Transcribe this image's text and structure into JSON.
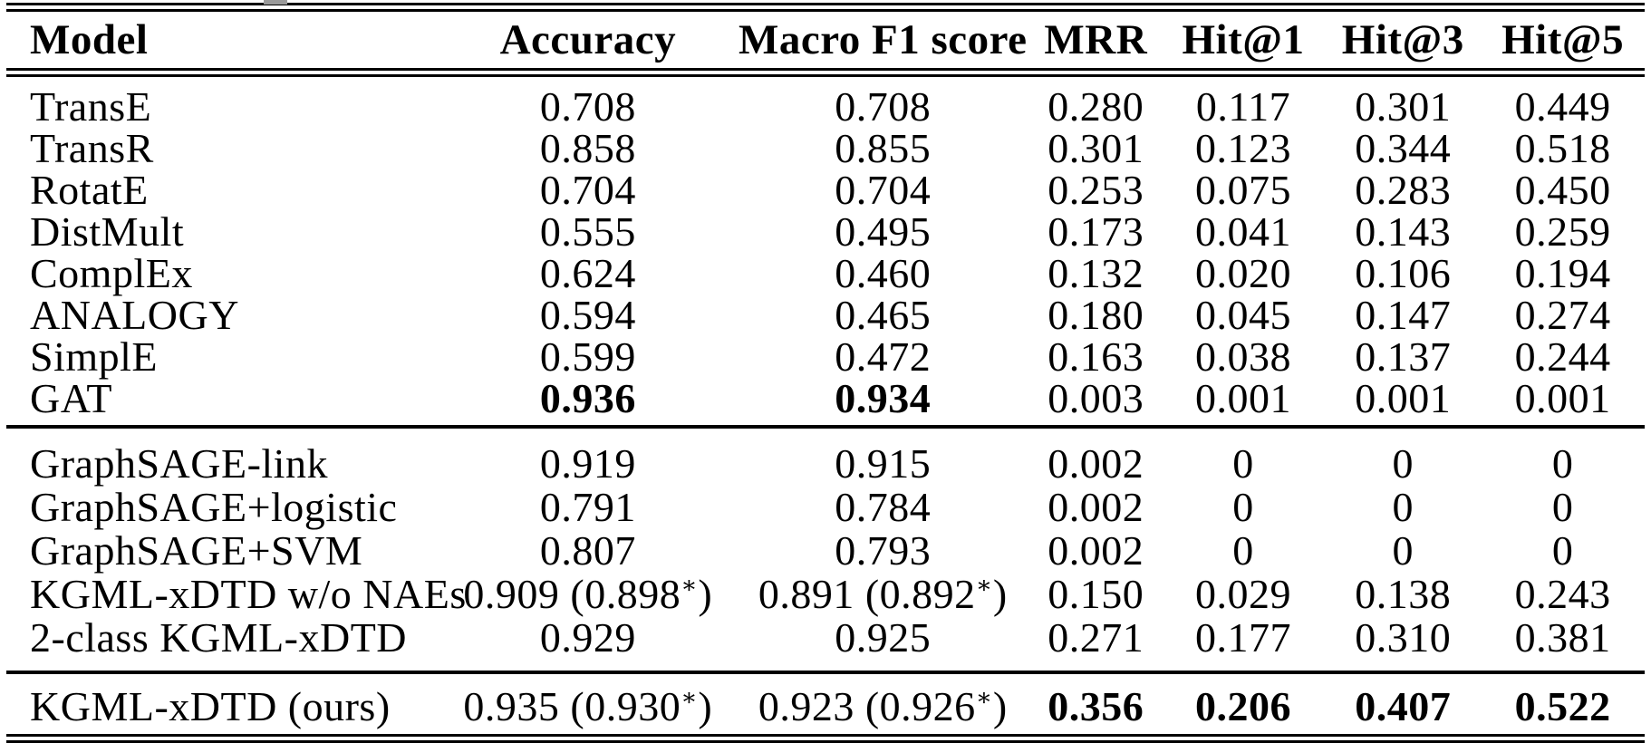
{
  "colors": {
    "background": "#ffffff",
    "text": "#000000",
    "rule": "#000000"
  },
  "table": {
    "columns": [
      {
        "label": "Model"
      },
      {
        "label": "Accuracy"
      },
      {
        "label": "Macro F1 score"
      },
      {
        "label": "MRR"
      },
      {
        "label": "Hit@1"
      },
      {
        "label": "Hit@3"
      },
      {
        "label": "Hit@5"
      }
    ],
    "sections": [
      {
        "rows": [
          {
            "cells": [
              "TransE",
              "0.708",
              "0.708",
              "0.280",
              "0.117",
              "0.301",
              "0.449"
            ],
            "bold": []
          },
          {
            "cells": [
              "TransR",
              "0.858",
              "0.855",
              "0.301",
              "0.123",
              "0.344",
              "0.518"
            ],
            "bold": []
          },
          {
            "cells": [
              "RotatE",
              "0.704",
              "0.704",
              "0.253",
              "0.075",
              "0.283",
              "0.450"
            ],
            "bold": []
          },
          {
            "cells": [
              "DistMult",
              "0.555",
              "0.495",
              "0.173",
              "0.041",
              "0.143",
              "0.259"
            ],
            "bold": []
          },
          {
            "cells": [
              "ComplEx",
              "0.624",
              "0.460",
              "0.132",
              "0.020",
              "0.106",
              "0.194"
            ],
            "bold": []
          },
          {
            "cells": [
              "ANALOGY",
              "0.594",
              "0.465",
              "0.180",
              "0.045",
              "0.147",
              "0.274"
            ],
            "bold": []
          },
          {
            "cells": [
              "SimplE",
              "0.599",
              "0.472",
              "0.163",
              "0.038",
              "0.137",
              "0.244"
            ],
            "bold": []
          },
          {
            "cells": [
              "GAT",
              "0.936",
              "0.934",
              "0.003",
              "0.001",
              "0.001",
              "0.001"
            ],
            "bold": [
              1,
              2
            ]
          }
        ]
      },
      {
        "rows": [
          {
            "cells": [
              "GraphSAGE-link",
              "0.919",
              "0.915",
              "0.002",
              "0",
              "0",
              "0"
            ],
            "bold": []
          },
          {
            "cells": [
              "GraphSAGE+logistic",
              "0.791",
              "0.784",
              "0.002",
              "0",
              "0",
              "0"
            ],
            "bold": []
          },
          {
            "cells": [
              "GraphSAGE+SVM",
              "0.807",
              "0.793",
              "0.002",
              "0",
              "0",
              "0"
            ],
            "bold": []
          },
          {
            "cells": [
              "KGML-xDTD w/o NAEs",
              "0.909 (0.898*)",
              "0.891 (0.892*)",
              "0.150",
              "0.029",
              "0.138",
              "0.243"
            ],
            "bold": []
          },
          {
            "cells": [
              "2-class KGML-xDTD",
              "0.929",
              "0.925",
              "0.271",
              "0.177",
              "0.310",
              "0.381"
            ],
            "bold": []
          }
        ]
      },
      {
        "rows": [
          {
            "cells": [
              "KGML-xDTD (ours)",
              "0.935 (0.930*)",
              "0.923 (0.926*)",
              "0.356",
              "0.206",
              "0.407",
              "0.522"
            ],
            "bold": [
              3,
              4,
              5,
              6
            ]
          }
        ]
      }
    ]
  }
}
